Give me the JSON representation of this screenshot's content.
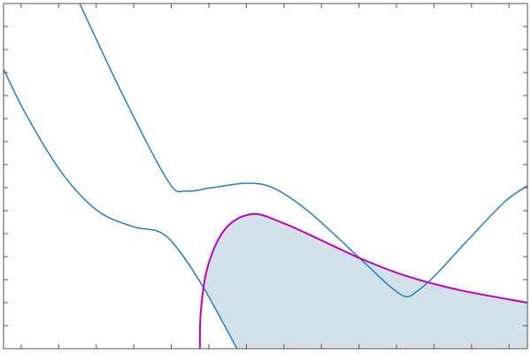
{
  "chart_data": {
    "type": "line",
    "title": "",
    "xlabel": "",
    "ylabel": "",
    "xlim": [
      -0.47,
      13.49
    ],
    "ylim": [
      0,
      15
    ],
    "xticks": [
      0,
      1,
      2,
      3,
      4,
      5,
      6,
      7,
      8,
      9,
      10,
      11,
      12,
      13
    ],
    "yticks": [
      1,
      2,
      3,
      4,
      5,
      6,
      7,
      8,
      9,
      10,
      11,
      12,
      13,
      14
    ],
    "tick_labels_shown": false,
    "grid": false,
    "legend": "none",
    "colors": {
      "blue": "#1f7fc8",
      "magenta": "#c000c0",
      "fill": "#d3e2ea",
      "axis": "#555555"
    },
    "series": [
      {
        "color": "blue",
        "points": [
          [
            1.56,
            15.0
          ],
          [
            2.74,
            10.92
          ],
          [
            3.92,
            7.27
          ],
          [
            4.39,
            6.85
          ],
          [
            5.09,
            7.0
          ],
          [
            6.04,
            7.19
          ],
          [
            6.75,
            6.96
          ],
          [
            7.69,
            5.92
          ],
          [
            9.1,
            3.81
          ],
          [
            9.81,
            2.73
          ],
          [
            10.24,
            2.27
          ],
          [
            10.52,
            2.46
          ],
          [
            10.99,
            3.12
          ],
          [
            11.93,
            4.77
          ],
          [
            12.88,
            6.38
          ],
          [
            13.49,
            7.08
          ]
        ]
      },
      {
        "color": "blue",
        "points": [
          [
            -0.47,
            12.15
          ],
          [
            0.14,
            10.15
          ],
          [
            1.08,
            7.65
          ],
          [
            2.03,
            6.0
          ],
          [
            2.97,
            5.31
          ],
          [
            3.68,
            5.08
          ],
          [
            4.15,
            4.38
          ],
          [
            4.86,
            2.65
          ],
          [
            5.75,
            0
          ]
        ]
      },
      {
        "color": "magenta",
        "points": [
          [
            4.76,
            0
          ],
          [
            4.79,
            1.69
          ],
          [
            4.98,
            3.62
          ],
          [
            5.45,
            5.23
          ],
          [
            6.16,
            5.85
          ],
          [
            6.98,
            5.46
          ],
          [
            7.92,
            4.77
          ],
          [
            9.1,
            3.88
          ],
          [
            10.28,
            3.15
          ],
          [
            11.7,
            2.54
          ],
          [
            13.49,
            2.0
          ]
        ]
      }
    ],
    "shaded_region": {
      "color": "fill",
      "points": [
        [
          5.75,
          0
        ],
        [
          4.86,
          2.65
        ],
        [
          4.98,
          3.62
        ],
        [
          5.45,
          5.23
        ],
        [
          6.16,
          5.85
        ],
        [
          6.98,
          5.46
        ],
        [
          7.92,
          4.77
        ],
        [
          9.1,
          3.88
        ],
        [
          10.28,
          3.15
        ],
        [
          11.7,
          2.54
        ],
        [
          13.49,
          2.0
        ],
        [
          13.49,
          0
        ]
      ]
    }
  }
}
